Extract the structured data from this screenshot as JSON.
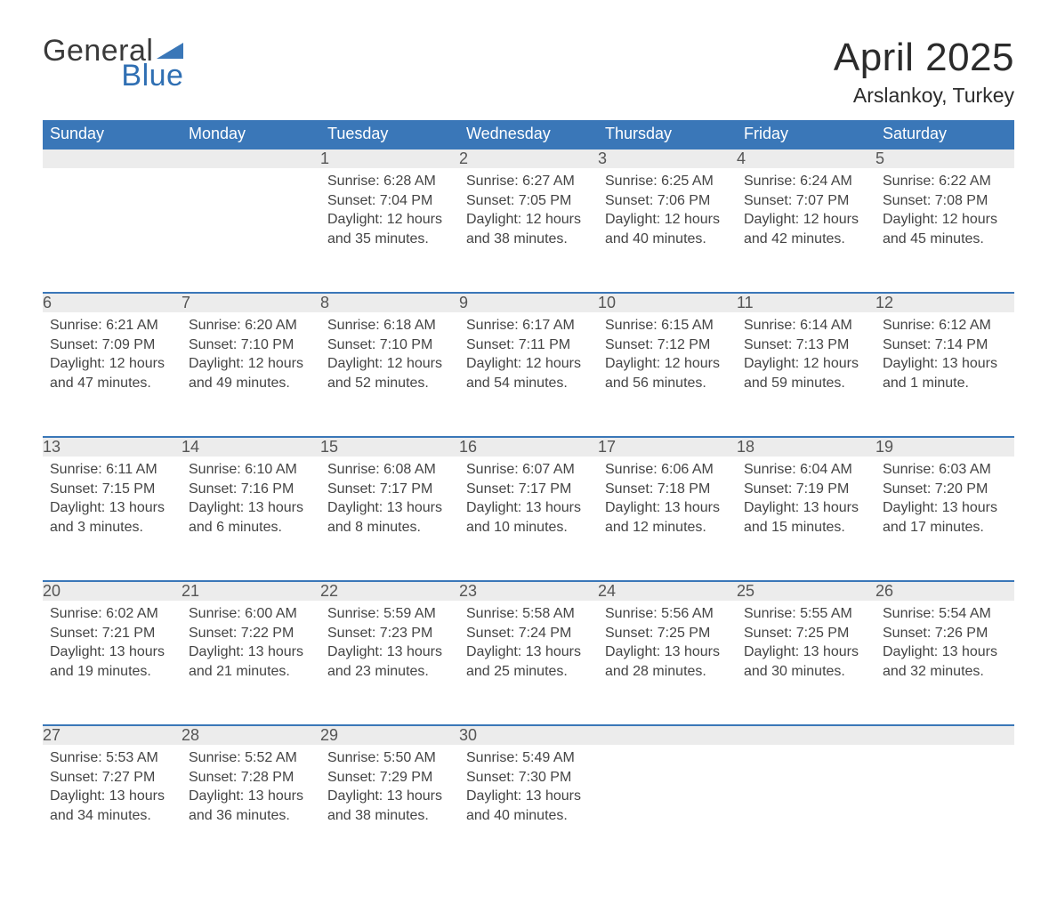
{
  "branding": {
    "word1": "General",
    "word2": "Blue",
    "colors": {
      "word1": "#3a3a3a",
      "word2": "#2f6fb3",
      "triangle": "#3a77b8"
    }
  },
  "header": {
    "title": "April 2025",
    "location": "Arslankoy, Turkey"
  },
  "calendar": {
    "headers_bg": "#3a77b8",
    "headers_fg": "#ffffff",
    "daynum_bg": "#ececec",
    "daynum_border": "#3a77b8",
    "text_color": "#444444",
    "days_of_week": [
      "Sunday",
      "Monday",
      "Tuesday",
      "Wednesday",
      "Thursday",
      "Friday",
      "Saturday"
    ],
    "labels": {
      "sunrise": "Sunrise:",
      "sunset": "Sunset:",
      "daylight": "Daylight:"
    },
    "weeks": [
      [
        null,
        null,
        {
          "n": "1",
          "sunrise": "6:28 AM",
          "sunset": "7:04 PM",
          "daylight": "12 hours and 35 minutes."
        },
        {
          "n": "2",
          "sunrise": "6:27 AM",
          "sunset": "7:05 PM",
          "daylight": "12 hours and 38 minutes."
        },
        {
          "n": "3",
          "sunrise": "6:25 AM",
          "sunset": "7:06 PM",
          "daylight": "12 hours and 40 minutes."
        },
        {
          "n": "4",
          "sunrise": "6:24 AM",
          "sunset": "7:07 PM",
          "daylight": "12 hours and 42 minutes."
        },
        {
          "n": "5",
          "sunrise": "6:22 AM",
          "sunset": "7:08 PM",
          "daylight": "12 hours and 45 minutes."
        }
      ],
      [
        {
          "n": "6",
          "sunrise": "6:21 AM",
          "sunset": "7:09 PM",
          "daylight": "12 hours and 47 minutes."
        },
        {
          "n": "7",
          "sunrise": "6:20 AM",
          "sunset": "7:10 PM",
          "daylight": "12 hours and 49 minutes."
        },
        {
          "n": "8",
          "sunrise": "6:18 AM",
          "sunset": "7:10 PM",
          "daylight": "12 hours and 52 minutes."
        },
        {
          "n": "9",
          "sunrise": "6:17 AM",
          "sunset": "7:11 PM",
          "daylight": "12 hours and 54 minutes."
        },
        {
          "n": "10",
          "sunrise": "6:15 AM",
          "sunset": "7:12 PM",
          "daylight": "12 hours and 56 minutes."
        },
        {
          "n": "11",
          "sunrise": "6:14 AM",
          "sunset": "7:13 PM",
          "daylight": "12 hours and 59 minutes."
        },
        {
          "n": "12",
          "sunrise": "6:12 AM",
          "sunset": "7:14 PM",
          "daylight": "13 hours and 1 minute."
        }
      ],
      [
        {
          "n": "13",
          "sunrise": "6:11 AM",
          "sunset": "7:15 PM",
          "daylight": "13 hours and 3 minutes."
        },
        {
          "n": "14",
          "sunrise": "6:10 AM",
          "sunset": "7:16 PM",
          "daylight": "13 hours and 6 minutes."
        },
        {
          "n": "15",
          "sunrise": "6:08 AM",
          "sunset": "7:17 PM",
          "daylight": "13 hours and 8 minutes."
        },
        {
          "n": "16",
          "sunrise": "6:07 AM",
          "sunset": "7:17 PM",
          "daylight": "13 hours and 10 minutes."
        },
        {
          "n": "17",
          "sunrise": "6:06 AM",
          "sunset": "7:18 PM",
          "daylight": "13 hours and 12 minutes."
        },
        {
          "n": "18",
          "sunrise": "6:04 AM",
          "sunset": "7:19 PM",
          "daylight": "13 hours and 15 minutes."
        },
        {
          "n": "19",
          "sunrise": "6:03 AM",
          "sunset": "7:20 PM",
          "daylight": "13 hours and 17 minutes."
        }
      ],
      [
        {
          "n": "20",
          "sunrise": "6:02 AM",
          "sunset": "7:21 PM",
          "daylight": "13 hours and 19 minutes."
        },
        {
          "n": "21",
          "sunrise": "6:00 AM",
          "sunset": "7:22 PM",
          "daylight": "13 hours and 21 minutes."
        },
        {
          "n": "22",
          "sunrise": "5:59 AM",
          "sunset": "7:23 PM",
          "daylight": "13 hours and 23 minutes."
        },
        {
          "n": "23",
          "sunrise": "5:58 AM",
          "sunset": "7:24 PM",
          "daylight": "13 hours and 25 minutes."
        },
        {
          "n": "24",
          "sunrise": "5:56 AM",
          "sunset": "7:25 PM",
          "daylight": "13 hours and 28 minutes."
        },
        {
          "n": "25",
          "sunrise": "5:55 AM",
          "sunset": "7:25 PM",
          "daylight": "13 hours and 30 minutes."
        },
        {
          "n": "26",
          "sunrise": "5:54 AM",
          "sunset": "7:26 PM",
          "daylight": "13 hours and 32 minutes."
        }
      ],
      [
        {
          "n": "27",
          "sunrise": "5:53 AM",
          "sunset": "7:27 PM",
          "daylight": "13 hours and 34 minutes."
        },
        {
          "n": "28",
          "sunrise": "5:52 AM",
          "sunset": "7:28 PM",
          "daylight": "13 hours and 36 minutes."
        },
        {
          "n": "29",
          "sunrise": "5:50 AM",
          "sunset": "7:29 PM",
          "daylight": "13 hours and 38 minutes."
        },
        {
          "n": "30",
          "sunrise": "5:49 AM",
          "sunset": "7:30 PM",
          "daylight": "13 hours and 40 minutes."
        },
        null,
        null,
        null
      ]
    ]
  }
}
